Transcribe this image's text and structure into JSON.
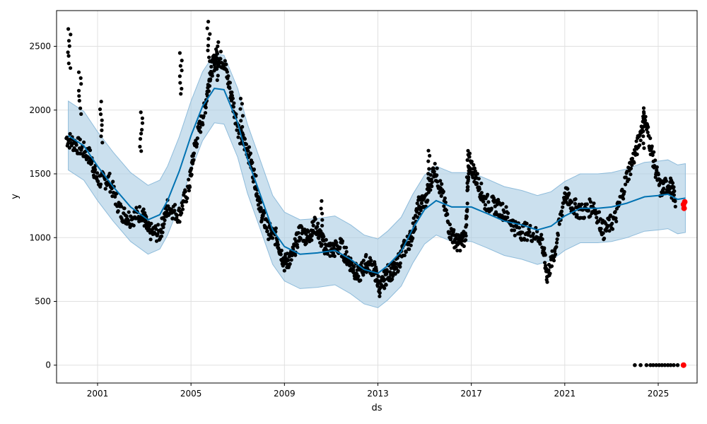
{
  "chart_data": {
    "type": "line",
    "xlabel": "ds",
    "ylabel": "y",
    "x_ticks": [
      "2001",
      "2005",
      "2009",
      "2013",
      "2017",
      "2021",
      "2025"
    ],
    "y_ticks": [
      "0",
      "500",
      "1000",
      "1500",
      "2000",
      "2500"
    ],
    "xlim": [
      "1999-04-01",
      "2026-09-01"
    ],
    "ylim": [
      -140,
      2780
    ],
    "grid": true,
    "colors": {
      "observed": "#000000",
      "forecast": "#0072B2",
      "interval": "#a9cce3",
      "interval_edge": "#8fbcdb",
      "highlight": "#ff0000"
    },
    "forecast": [
      [
        "1999-10-01",
        1800
      ],
      [
        "2000-06-01",
        1720
      ],
      [
        "2001-01-01",
        1560
      ],
      [
        "2001-09-01",
        1400
      ],
      [
        "2002-06-01",
        1240
      ],
      [
        "2003-03-01",
        1140
      ],
      [
        "2003-09-01",
        1180
      ],
      [
        "2004-01-01",
        1290
      ],
      [
        "2004-07-01",
        1520
      ],
      [
        "2005-01-01",
        1800
      ],
      [
        "2005-07-01",
        2030
      ],
      [
        "2006-01-01",
        2170
      ],
      [
        "2006-06-01",
        2160
      ],
      [
        "2007-01-01",
        1900
      ],
      [
        "2007-06-01",
        1620
      ],
      [
        "2008-01-01",
        1320
      ],
      [
        "2008-07-01",
        1060
      ],
      [
        "2009-01-01",
        930
      ],
      [
        "2009-09-01",
        870
      ],
      [
        "2010-06-01",
        880
      ],
      [
        "2011-03-01",
        900
      ],
      [
        "2011-11-01",
        830
      ],
      [
        "2012-06-01",
        750
      ],
      [
        "2013-01-01",
        720
      ],
      [
        "2013-06-01",
        780
      ],
      [
        "2014-01-01",
        890
      ],
      [
        "2014-07-01",
        1070
      ],
      [
        "2015-01-01",
        1220
      ],
      [
        "2015-07-01",
        1290
      ],
      [
        "2016-03-01",
        1240
      ],
      [
        "2017-01-01",
        1240
      ],
      [
        "2017-09-01",
        1190
      ],
      [
        "2018-06-01",
        1130
      ],
      [
        "2019-03-01",
        1100
      ],
      [
        "2019-11-01",
        1060
      ],
      [
        "2020-06-01",
        1090
      ],
      [
        "2021-01-01",
        1170
      ],
      [
        "2021-09-01",
        1230
      ],
      [
        "2022-06-01",
        1230
      ],
      [
        "2023-01-01",
        1240
      ],
      [
        "2023-09-01",
        1270
      ],
      [
        "2024-06-01",
        1320
      ],
      [
        "2025-01-01",
        1330
      ],
      [
        "2025-06-01",
        1340
      ],
      [
        "2025-11-01",
        1300
      ],
      [
        "2026-03-01",
        1310
      ]
    ],
    "interval_halfwidth": 270,
    "observed_segments": [
      [
        [
          "1999-09-01",
          1780
        ],
        [
          "2000-03-01",
          1720
        ],
        [
          "2000-09-01",
          1640
        ],
        [
          "2001-01-01",
          1450
        ],
        [
          "2001-07-01",
          1450
        ],
        [
          "2002-01-01",
          1200
        ],
        [
          "2002-06-01",
          1150
        ],
        [
          "2002-12-01",
          1200
        ],
        [
          "2003-03-01",
          1050
        ],
        [
          "2003-09-01",
          1030
        ],
        [
          "2004-01-01",
          1240
        ],
        [
          "2004-07-01",
          1180
        ],
        [
          "2004-12-01",
          1400
        ],
        [
          "2005-03-01",
          1720
        ],
        [
          "2005-08-01",
          2000
        ],
        [
          "2005-11-01",
          2300
        ],
        [
          "2006-02-01",
          2420
        ],
        [
          "2006-06-01",
          2380
        ],
        [
          "2006-10-01",
          2100
        ],
        [
          "2007-02-01",
          1800
        ],
        [
          "2007-06-01",
          1700
        ],
        [
          "2007-10-01",
          1450
        ],
        [
          "2008-01-01",
          1200
        ],
        [
          "2008-05-01",
          1050
        ],
        [
          "2008-09-01",
          1000
        ],
        [
          "2009-01-01",
          800
        ],
        [
          "2009-05-01",
          850
        ],
        [
          "2009-09-01",
          1050
        ],
        [
          "2010-01-01",
          1000
        ],
        [
          "2010-05-01",
          1100
        ],
        [
          "2010-09-01",
          950
        ],
        [
          "2011-01-01",
          900
        ],
        [
          "2011-06-01",
          930
        ],
        [
          "2011-11-01",
          800
        ],
        [
          "2012-03-01",
          700
        ],
        [
          "2012-07-01",
          800
        ],
        [
          "2012-11-01",
          760
        ],
        [
          "2013-02-01",
          600
        ],
        [
          "2013-06-01",
          720
        ],
        [
          "2013-10-01",
          750
        ],
        [
          "2014-02-01",
          900
        ],
        [
          "2014-06-01",
          1000
        ],
        [
          "2014-10-01",
          1250
        ],
        [
          "2015-02-01",
          1300
        ],
        [
          "2015-06-01",
          1550
        ],
        [
          "2015-10-01",
          1350
        ],
        [
          "2016-02-01",
          1050
        ],
        [
          "2016-06-01",
          950
        ],
        [
          "2016-10-01",
          1000
        ],
        [
          "2016-12-01",
          1600
        ],
        [
          "2017-04-01",
          1450
        ],
        [
          "2017-08-01",
          1280
        ],
        [
          "2018-01-01",
          1250
        ],
        [
          "2018-06-01",
          1200
        ],
        [
          "2019-01-01",
          1050
        ],
        [
          "2019-06-01",
          1050
        ],
        [
          "2020-01-01",
          1000
        ],
        [
          "2020-04-01",
          700
        ],
        [
          "2020-08-01",
          900
        ],
        [
          "2021-01-01",
          1350
        ],
        [
          "2021-05-01",
          1250
        ],
        [
          "2021-10-01",
          1200
        ],
        [
          "2022-04-01",
          1250
        ],
        [
          "2022-09-01",
          1050
        ],
        [
          "2023-03-01",
          1150
        ],
        [
          "2023-09-01",
          1480
        ],
        [
          "2024-02-01",
          1700
        ],
        [
          "2024-06-01",
          1950
        ],
        [
          "2024-10-01",
          1650
        ],
        [
          "2025-02-01",
          1380
        ],
        [
          "2025-07-01",
          1420
        ],
        [
          "2025-10-01",
          1300
        ]
      ]
    ],
    "observed_spikes": [
      [
        "1999-10-15",
        2650
      ],
      [
        "2000-04-01",
        2300
      ],
      [
        "2001-03-01",
        2070
      ],
      [
        "2002-11-15",
        2000
      ],
      [
        "2004-08-01",
        2450
      ],
      [
        "2005-10-01",
        2700
      ],
      [
        "2006-03-01",
        2550
      ],
      [
        "2007-03-01",
        2100
      ],
      [
        "2010-08-01",
        1290
      ],
      [
        "2015-03-01",
        1690
      ],
      [
        "2016-11-15",
        1700
      ],
      [
        "2024-05-15",
        2020
      ]
    ],
    "zero_points": [
      [
        "2024-01-01",
        0
      ],
      [
        "2024-04-01",
        0
      ],
      [
        "2024-07-01",
        0
      ],
      [
        "2024-09-01",
        0
      ],
      [
        "2024-10-15",
        0
      ],
      [
        "2024-12-01",
        0
      ],
      [
        "2025-01-15",
        0
      ],
      [
        "2025-03-01",
        0
      ],
      [
        "2025-04-15",
        0
      ],
      [
        "2025-06-01",
        0
      ],
      [
        "2025-07-15",
        0
      ],
      [
        "2025-09-01",
        0
      ],
      [
        "2025-11-01",
        0
      ]
    ],
    "highlight_points": [
      [
        "2026-02-01",
        1260
      ],
      [
        "2026-02-10",
        1230
      ],
      [
        "2026-02-20",
        1280
      ],
      [
        "2026-02-01",
        0
      ]
    ]
  }
}
